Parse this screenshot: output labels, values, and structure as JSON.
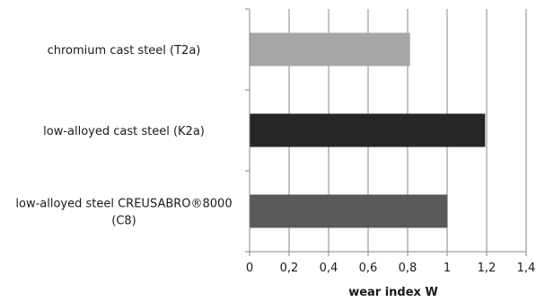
{
  "chart_data": {
    "type": "bar",
    "orientation": "horizontal",
    "categories": [
      [
        "chromium cast steel (T2a)"
      ],
      [
        "low-alloyed cast steel (K2a)"
      ],
      [
        "low-alloyed steel CREUSABRO®8000",
        "(C8)"
      ]
    ],
    "values": [
      0.81,
      1.19,
      1.0
    ],
    "bar_colors": [
      "#a6a6a6",
      "#262626",
      "#595959"
    ],
    "xlabel": "wear index W",
    "xlim": [
      0,
      1.4
    ],
    "xticks": [
      "0",
      "0,2",
      "0,4",
      "0,6",
      "0,8",
      "1",
      "1,2",
      "1,4"
    ],
    "grid": true
  }
}
